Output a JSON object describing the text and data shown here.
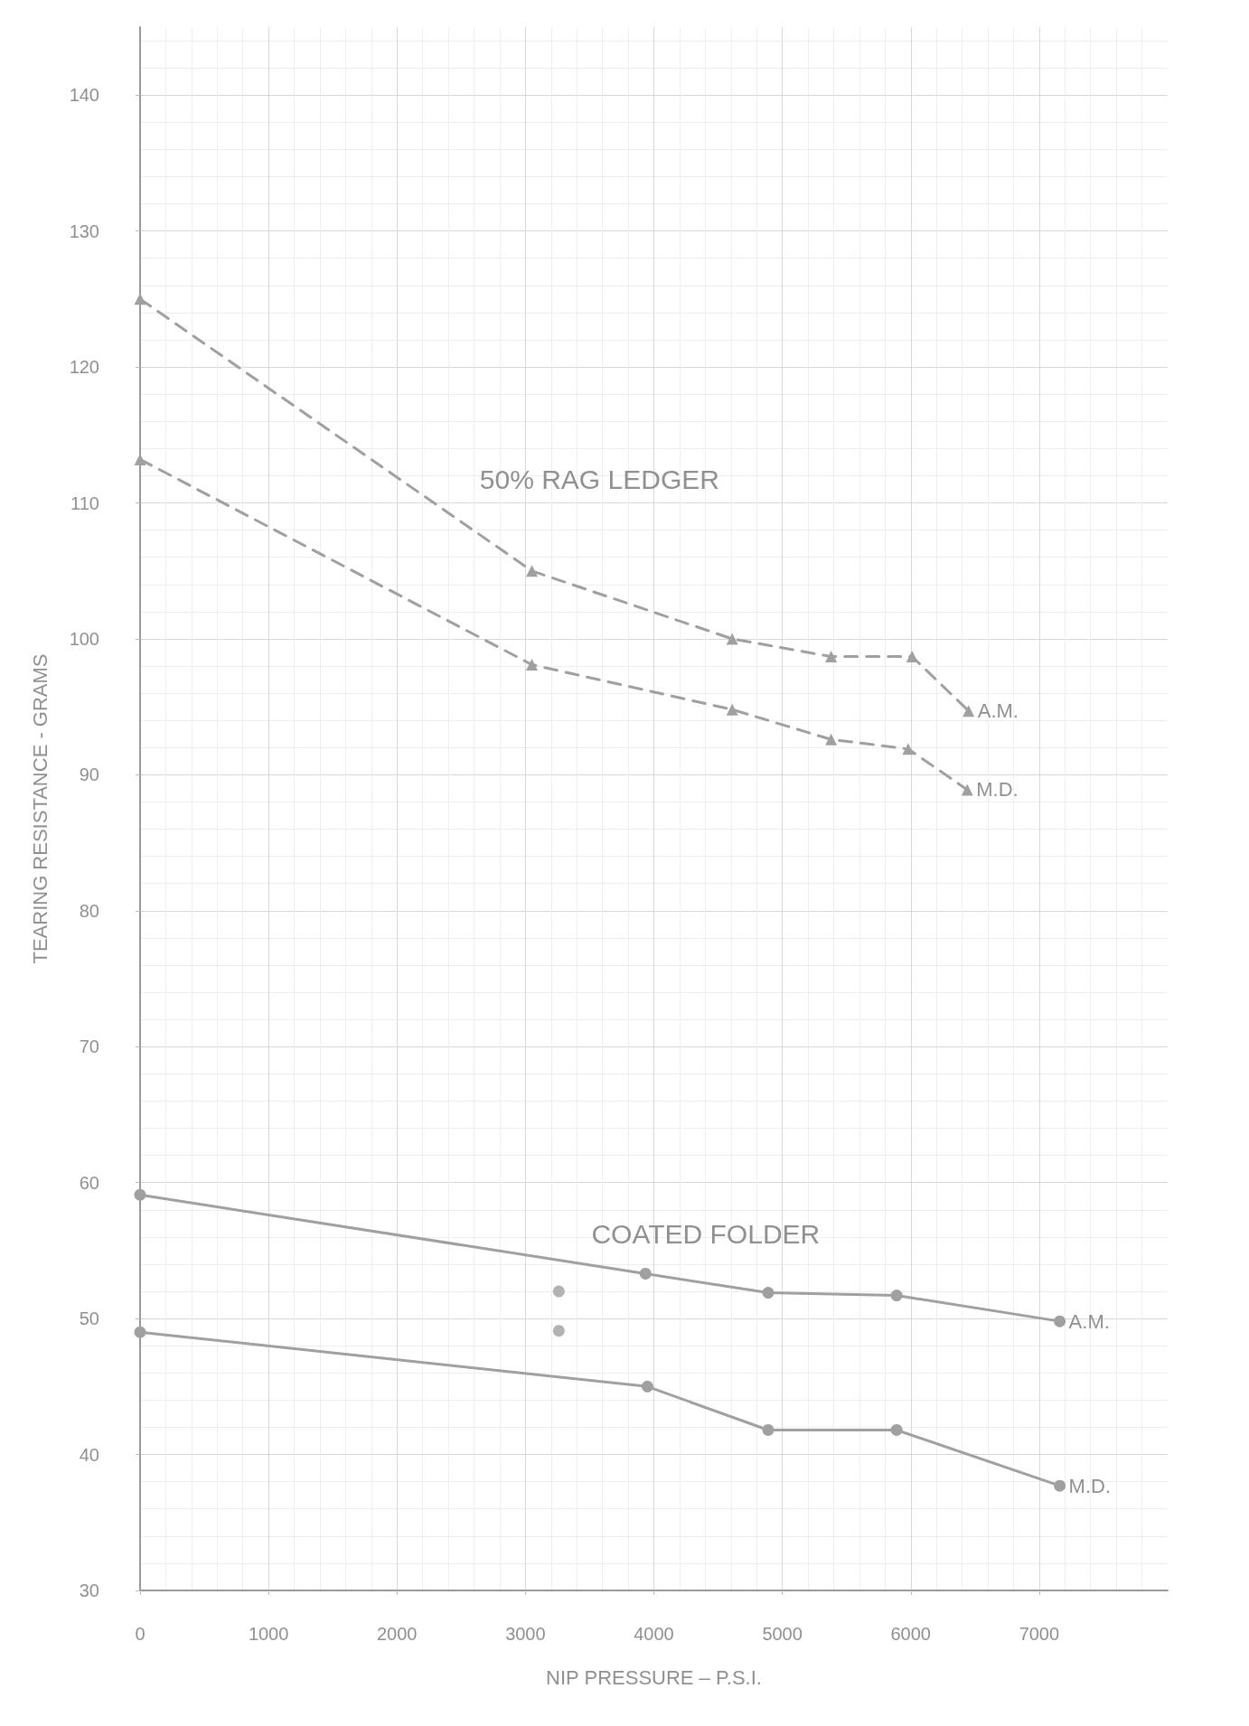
{
  "chart_data": {
    "type": "line",
    "xlabel": "NIP PRESSURE – P.S.I.",
    "ylabel": "TEARING RESISTANCE - GRAMS",
    "xlim": [
      0,
      8000
    ],
    "xticks": [
      0,
      1000,
      2000,
      3000,
      4000,
      5000,
      6000,
      7000
    ],
    "ylim": [
      30,
      145
    ],
    "yticks": [
      30,
      40,
      50,
      60,
      70,
      80,
      90,
      100,
      110,
      120,
      130,
      140
    ],
    "grid": true,
    "annotations": [
      "50% RAG LEDGER",
      "COATED FOLDER"
    ],
    "series": [
      {
        "name": "A.M.",
        "color": "#a0a0a0",
        "line_style": "dashed",
        "marker": "triangle",
        "x": [
          0,
          3050,
          4610,
          5380,
          6010,
          6450
        ],
        "values": [
          125,
          105,
          100,
          98.7,
          98.7,
          94.7
        ]
      },
      {
        "name": "M.D.",
        "color": "#a0a0a0",
        "line_style": "dashed",
        "marker": "triangle",
        "x": [
          0,
          3050,
          4610,
          5380,
          5980,
          6440
        ],
        "values": [
          113.2,
          98.1,
          94.8,
          92.6,
          91.9,
          88.9
        ]
      },
      {
        "name": "A.M.",
        "color": "#a0a0a0",
        "line_style": "solid",
        "marker": "circle",
        "x": [
          0,
          3935,
          4890,
          5890,
          7160
        ],
        "values": [
          59.1,
          53.3,
          51.9,
          51.7,
          49.8
        ]
      },
      {
        "name": "M.D.",
        "color": "#a0a0a0",
        "line_style": "solid",
        "marker": "circle",
        "x": [
          0,
          3950,
          4890,
          5890,
          7160
        ],
        "values": [
          49,
          45,
          41.8,
          41.8,
          37.7
        ]
      },
      {
        "type": "scatter",
        "color": "#a0a0a0",
        "marker": "circle",
        "x": [
          3260,
          3260
        ],
        "values": [
          52,
          49.1
        ]
      }
    ]
  }
}
